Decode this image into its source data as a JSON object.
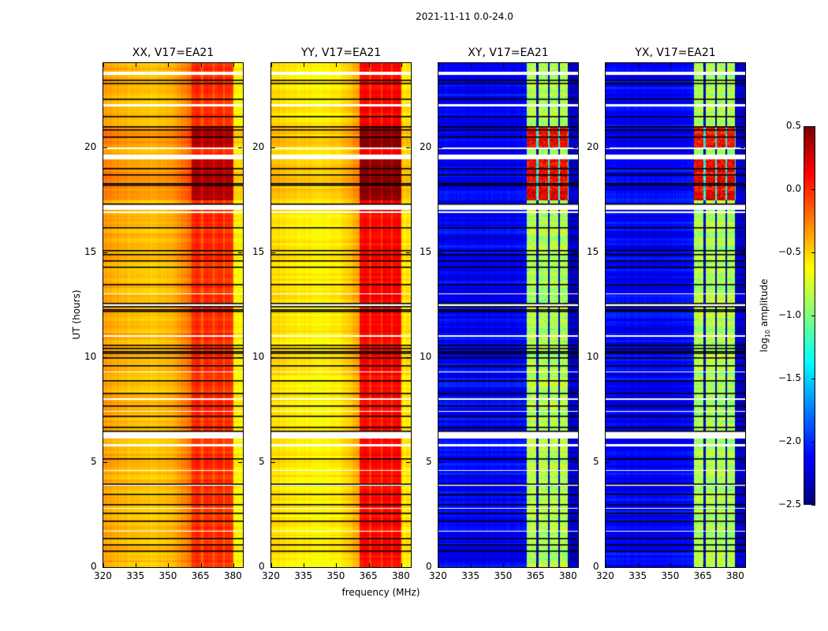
{
  "chart_data": {
    "type": "heatmap",
    "suptitle": "2021-11-11 0.0-24.0",
    "xlabel": "frequency (MHz)",
    "ylabel": "UT (hours)",
    "xlim": [
      320,
      384.4
    ],
    "ylim": [
      0,
      24
    ],
    "xticks": [
      320,
      335,
      350,
      365,
      380
    ],
    "yticks": [
      0,
      5,
      10,
      15,
      20
    ],
    "panels": [
      {
        "title": "XX, V17=EA21",
        "kind": "auto",
        "base_low": -0.35,
        "base_mid": -0.45,
        "band_level": 0.0,
        "edge_level": -0.6
      },
      {
        "title": "YY, V17=EA21",
        "kind": "auto",
        "base_low": -0.5,
        "base_mid": -0.6,
        "band_level": 0.12,
        "edge_level": -0.55
      },
      {
        "title": "XY, V17=EA21",
        "kind": "cross",
        "base_low": -2.1,
        "base_mid": -2.15,
        "band_level": -0.85,
        "edge_level": -2.3
      },
      {
        "title": "YX, V17=EA21",
        "kind": "cross",
        "base_low": -2.1,
        "base_mid": -2.15,
        "band_level": -0.85,
        "edge_level": -2.3
      }
    ],
    "subband_edges_mhz": [
      360.7,
      365.4,
      370.8,
      375.5,
      380.0
    ],
    "flagged_time_ranges_hours": [
      [
        23.45,
        23.6
      ],
      [
        21.95,
        22.05
      ],
      [
        19.92,
        20.0
      ],
      [
        19.45,
        19.65
      ],
      [
        17.05,
        17.3
      ],
      [
        12.4,
        12.55
      ],
      [
        6.15,
        6.5
      ],
      [
        5.78,
        5.86
      ],
      [
        16.9,
        16.95
      ],
      [
        13.0,
        13.05
      ],
      [
        11.0,
        11.05
      ],
      [
        9.3,
        9.35
      ],
      [
        8.0,
        8.05
      ],
      [
        7.4,
        7.45
      ],
      [
        4.6,
        4.65
      ],
      [
        3.9,
        3.95
      ],
      [
        2.8,
        2.85
      ],
      [
        1.7,
        1.75
      ]
    ],
    "dark_line_times_hours": [
      23.2,
      23.05,
      22.3,
      21.5,
      21.0,
      20.85,
      20.5,
      19.0,
      18.7,
      18.3,
      18.2,
      17.3,
      16.2,
      15.1,
      14.9,
      14.6,
      14.3,
      13.5,
      12.6,
      12.45,
      12.3,
      12.2,
      10.6,
      10.45,
      10.3,
      10.2,
      10.0,
      9.6,
      8.9,
      8.3,
      7.7,
      7.2,
      6.7,
      6.5,
      5.2,
      4.0,
      3.5,
      3.0,
      2.6,
      2.2,
      1.4,
      1.1,
      0.8
    ],
    "bright_time_ranges_hours": [
      [
        17.5,
        19.5
      ],
      [
        20.0,
        21.0
      ]
    ],
    "colorbar": {
      "cmap": "jet",
      "vmin": -2.5,
      "vmax": 0.5,
      "ticks": [
        "0.5",
        "0.0",
        "−0.5",
        "−1.0",
        "−1.5",
        "−2.0",
        "−2.5"
      ],
      "tick_values": [
        0.5,
        0.0,
        -0.5,
        -1.0,
        -1.5,
        -2.0,
        -2.5
      ],
      "label_prefix": "log",
      "label_sub": "10",
      "label_suffix": " amplitude"
    }
  }
}
